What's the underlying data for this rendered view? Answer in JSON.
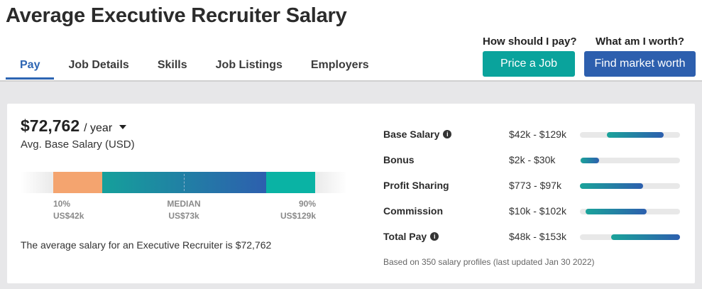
{
  "header": {
    "title": "Average Executive Recruiter Salary",
    "tabs": [
      "Pay",
      "Job Details",
      "Skills",
      "Job Listings",
      "Employers"
    ],
    "active_tab": "Pay",
    "cta_pay_prompt": "How should I pay?",
    "cta_pay_button": "Price a Job",
    "cta_worth_prompt": "What am I worth?",
    "cta_worth_button": "Find market worth"
  },
  "summary": {
    "amount": "$72,762",
    "period": "/ year",
    "subtitle": "Avg. Base Salary (USD)",
    "sentence": "The average salary for an Executive Recruiter is $72,762"
  },
  "range": {
    "p10_label": "10%",
    "p10_value": "US$42k",
    "median_label": "MEDIAN",
    "median_value": "US$73k",
    "p90_label": "90%",
    "p90_value": "US$129k"
  },
  "breakdown": [
    {
      "label": "Base Salary",
      "info": true,
      "range": "$42k - $129k",
      "fill_start_pct": 27,
      "fill_end_pct": 84
    },
    {
      "label": "Bonus",
      "info": false,
      "range": "$2k - $30k",
      "fill_start_pct": 1,
      "fill_end_pct": 19
    },
    {
      "label": "Profit Sharing",
      "info": false,
      "range": "$773 - $97k",
      "fill_start_pct": 0,
      "fill_end_pct": 63
    },
    {
      "label": "Commission",
      "info": false,
      "range": "$10k - $102k",
      "fill_start_pct": 6,
      "fill_end_pct": 67
    },
    {
      "label": "Total Pay",
      "info": true,
      "range": "$48k - $153k",
      "fill_start_pct": 31,
      "fill_end_pct": 100
    }
  ],
  "footnote": "Based on 350 salary profiles (last updated Jan 30 2022)",
  "colors": {
    "accent_blue": "#2d5fae",
    "accent_teal": "#0aa39c",
    "p10_segment": "#f4a46f",
    "p90_segment": "#0ab3a4"
  }
}
